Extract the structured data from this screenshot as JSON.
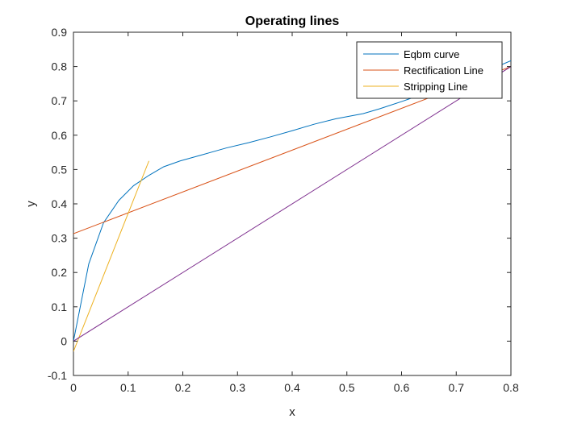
{
  "chart_data": {
    "type": "line",
    "title": "Operating lines",
    "xlabel": "x",
    "ylabel": "y",
    "xlim": [
      0,
      0.8
    ],
    "ylim": [
      -0.1,
      0.9
    ],
    "xticks": [
      0,
      0.1,
      0.2,
      0.3,
      0.4,
      0.5,
      0.6,
      0.7,
      0.8
    ],
    "xtick_labels": [
      "0",
      "0.1",
      "0.2",
      "0.3",
      "0.4",
      "0.5",
      "0.6",
      "0.7",
      "0.8"
    ],
    "yticks": [
      -0.1,
      0,
      0.1,
      0.2,
      0.3,
      0.4,
      0.5,
      0.6,
      0.7,
      0.8,
      0.9
    ],
    "ytick_labels": [
      "-0.1",
      "0",
      "0.1",
      "0.2",
      "0.3",
      "0.4",
      "0.5",
      "0.6",
      "0.7",
      "0.8",
      "0.9"
    ],
    "grid": false,
    "legend_position": "top-right",
    "series": [
      {
        "name": "Eqbm curve",
        "color": "#0072BD",
        "x": [
          0,
          0.028,
          0.055,
          0.083,
          0.11,
          0.138,
          0.165,
          0.195,
          0.24,
          0.28,
          0.32,
          0.36,
          0.4,
          0.44,
          0.48,
          0.53,
          0.56,
          0.6,
          0.64,
          0.68,
          0.72,
          0.76,
          0.8
        ],
        "y": [
          0,
          0.225,
          0.345,
          0.41,
          0.453,
          0.483,
          0.508,
          0.525,
          0.545,
          0.563,
          0.578,
          0.595,
          0.613,
          0.632,
          0.648,
          0.663,
          0.677,
          0.698,
          0.72,
          0.741,
          0.764,
          0.79,
          0.817
        ]
      },
      {
        "name": "Rectification Line",
        "color": "#D95319",
        "x": [
          0,
          0.8
        ],
        "y": [
          0.313,
          0.8
        ]
      },
      {
        "name": "Stripping Line",
        "color": "#EDB120",
        "x": [
          0,
          0.138
        ],
        "y": [
          -0.03,
          0.525
        ]
      },
      {
        "color": "#7E2F8E",
        "x": [
          0,
          0.8
        ],
        "y": [
          0,
          0.8
        ]
      }
    ]
  }
}
